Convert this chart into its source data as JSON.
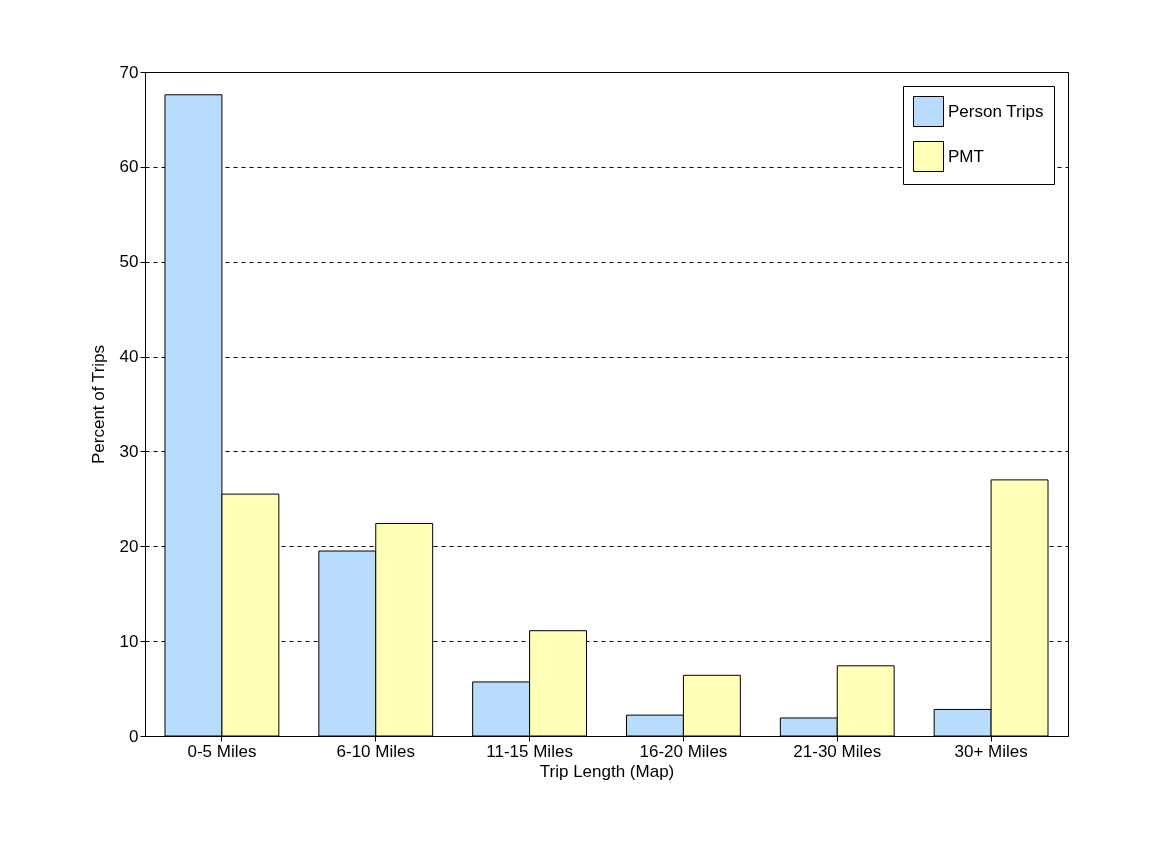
{
  "chart_data": {
    "type": "bar",
    "xlabel": "Trip Length (Map)",
    "ylabel": "Percent of Trips",
    "categories": [
      "0-5 Miles",
      "6-10 Miles",
      "11-15 Miles",
      "16-20 Miles",
      "21-30 Miles",
      "30+ Miles"
    ],
    "series": [
      {
        "name": "Person Trips",
        "color": "#b8dcfc",
        "values": [
          67.6,
          19.5,
          5.7,
          2.2,
          1.9,
          2.8
        ]
      },
      {
        "name": "PMT",
        "color": "#ffffb8",
        "values": [
          25.5,
          22.4,
          11.1,
          6.4,
          7.4,
          27.0
        ]
      }
    ],
    "ylim": [
      0,
      70
    ],
    "yticks": [
      0,
      10,
      20,
      30,
      40,
      50,
      60,
      70
    ],
    "grid": "y",
    "line_style": "dashed",
    "legend": "top right"
  }
}
